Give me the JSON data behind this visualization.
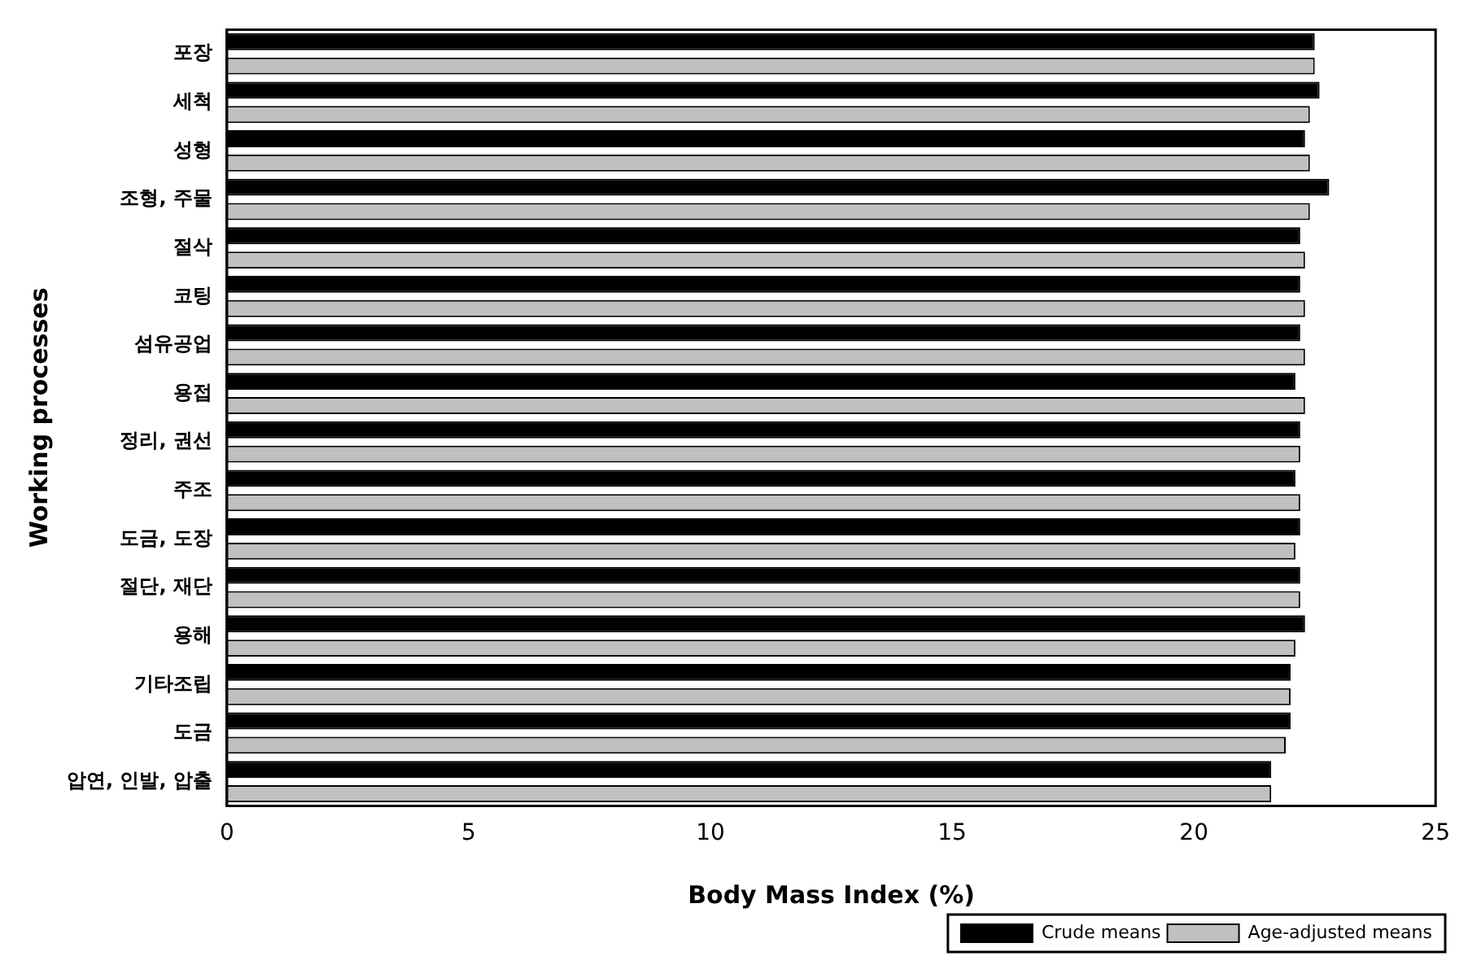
{
  "chart_data": {
    "type": "bar",
    "orientation": "horizontal",
    "xlabel": "Body Mass Index (%)",
    "ylabel": "Working processes",
    "categories": [
      "포장",
      "세척",
      "성형",
      "조형, 주물",
      "절삭",
      "코팅",
      "섬유공업",
      "용접",
      "정리, 권선",
      "주조",
      "도금, 도장",
      "절단, 재단",
      "용해",
      "기타조립",
      "도금",
      "압연, 인발, 압출"
    ],
    "series": [
      {
        "name": "Crude means",
        "color": "#000000",
        "values": [
          22.5,
          22.6,
          22.3,
          22.8,
          22.2,
          22.2,
          22.2,
          22.1,
          22.2,
          22.1,
          22.2,
          22.2,
          22.3,
          22.0,
          22.0,
          21.6
        ]
      },
      {
        "name": "Age-adjusted means",
        "color": "#c0c0c0",
        "values": [
          22.5,
          22.4,
          22.4,
          22.4,
          22.3,
          22.3,
          22.3,
          22.3,
          22.2,
          22.2,
          22.1,
          22.2,
          22.1,
          22.0,
          21.9,
          21.6
        ]
      }
    ],
    "xlim": [
      0,
      25
    ],
    "xticks": [
      0,
      5,
      10,
      15,
      20,
      25
    ],
    "grid": false,
    "legend": "bottom right"
  }
}
